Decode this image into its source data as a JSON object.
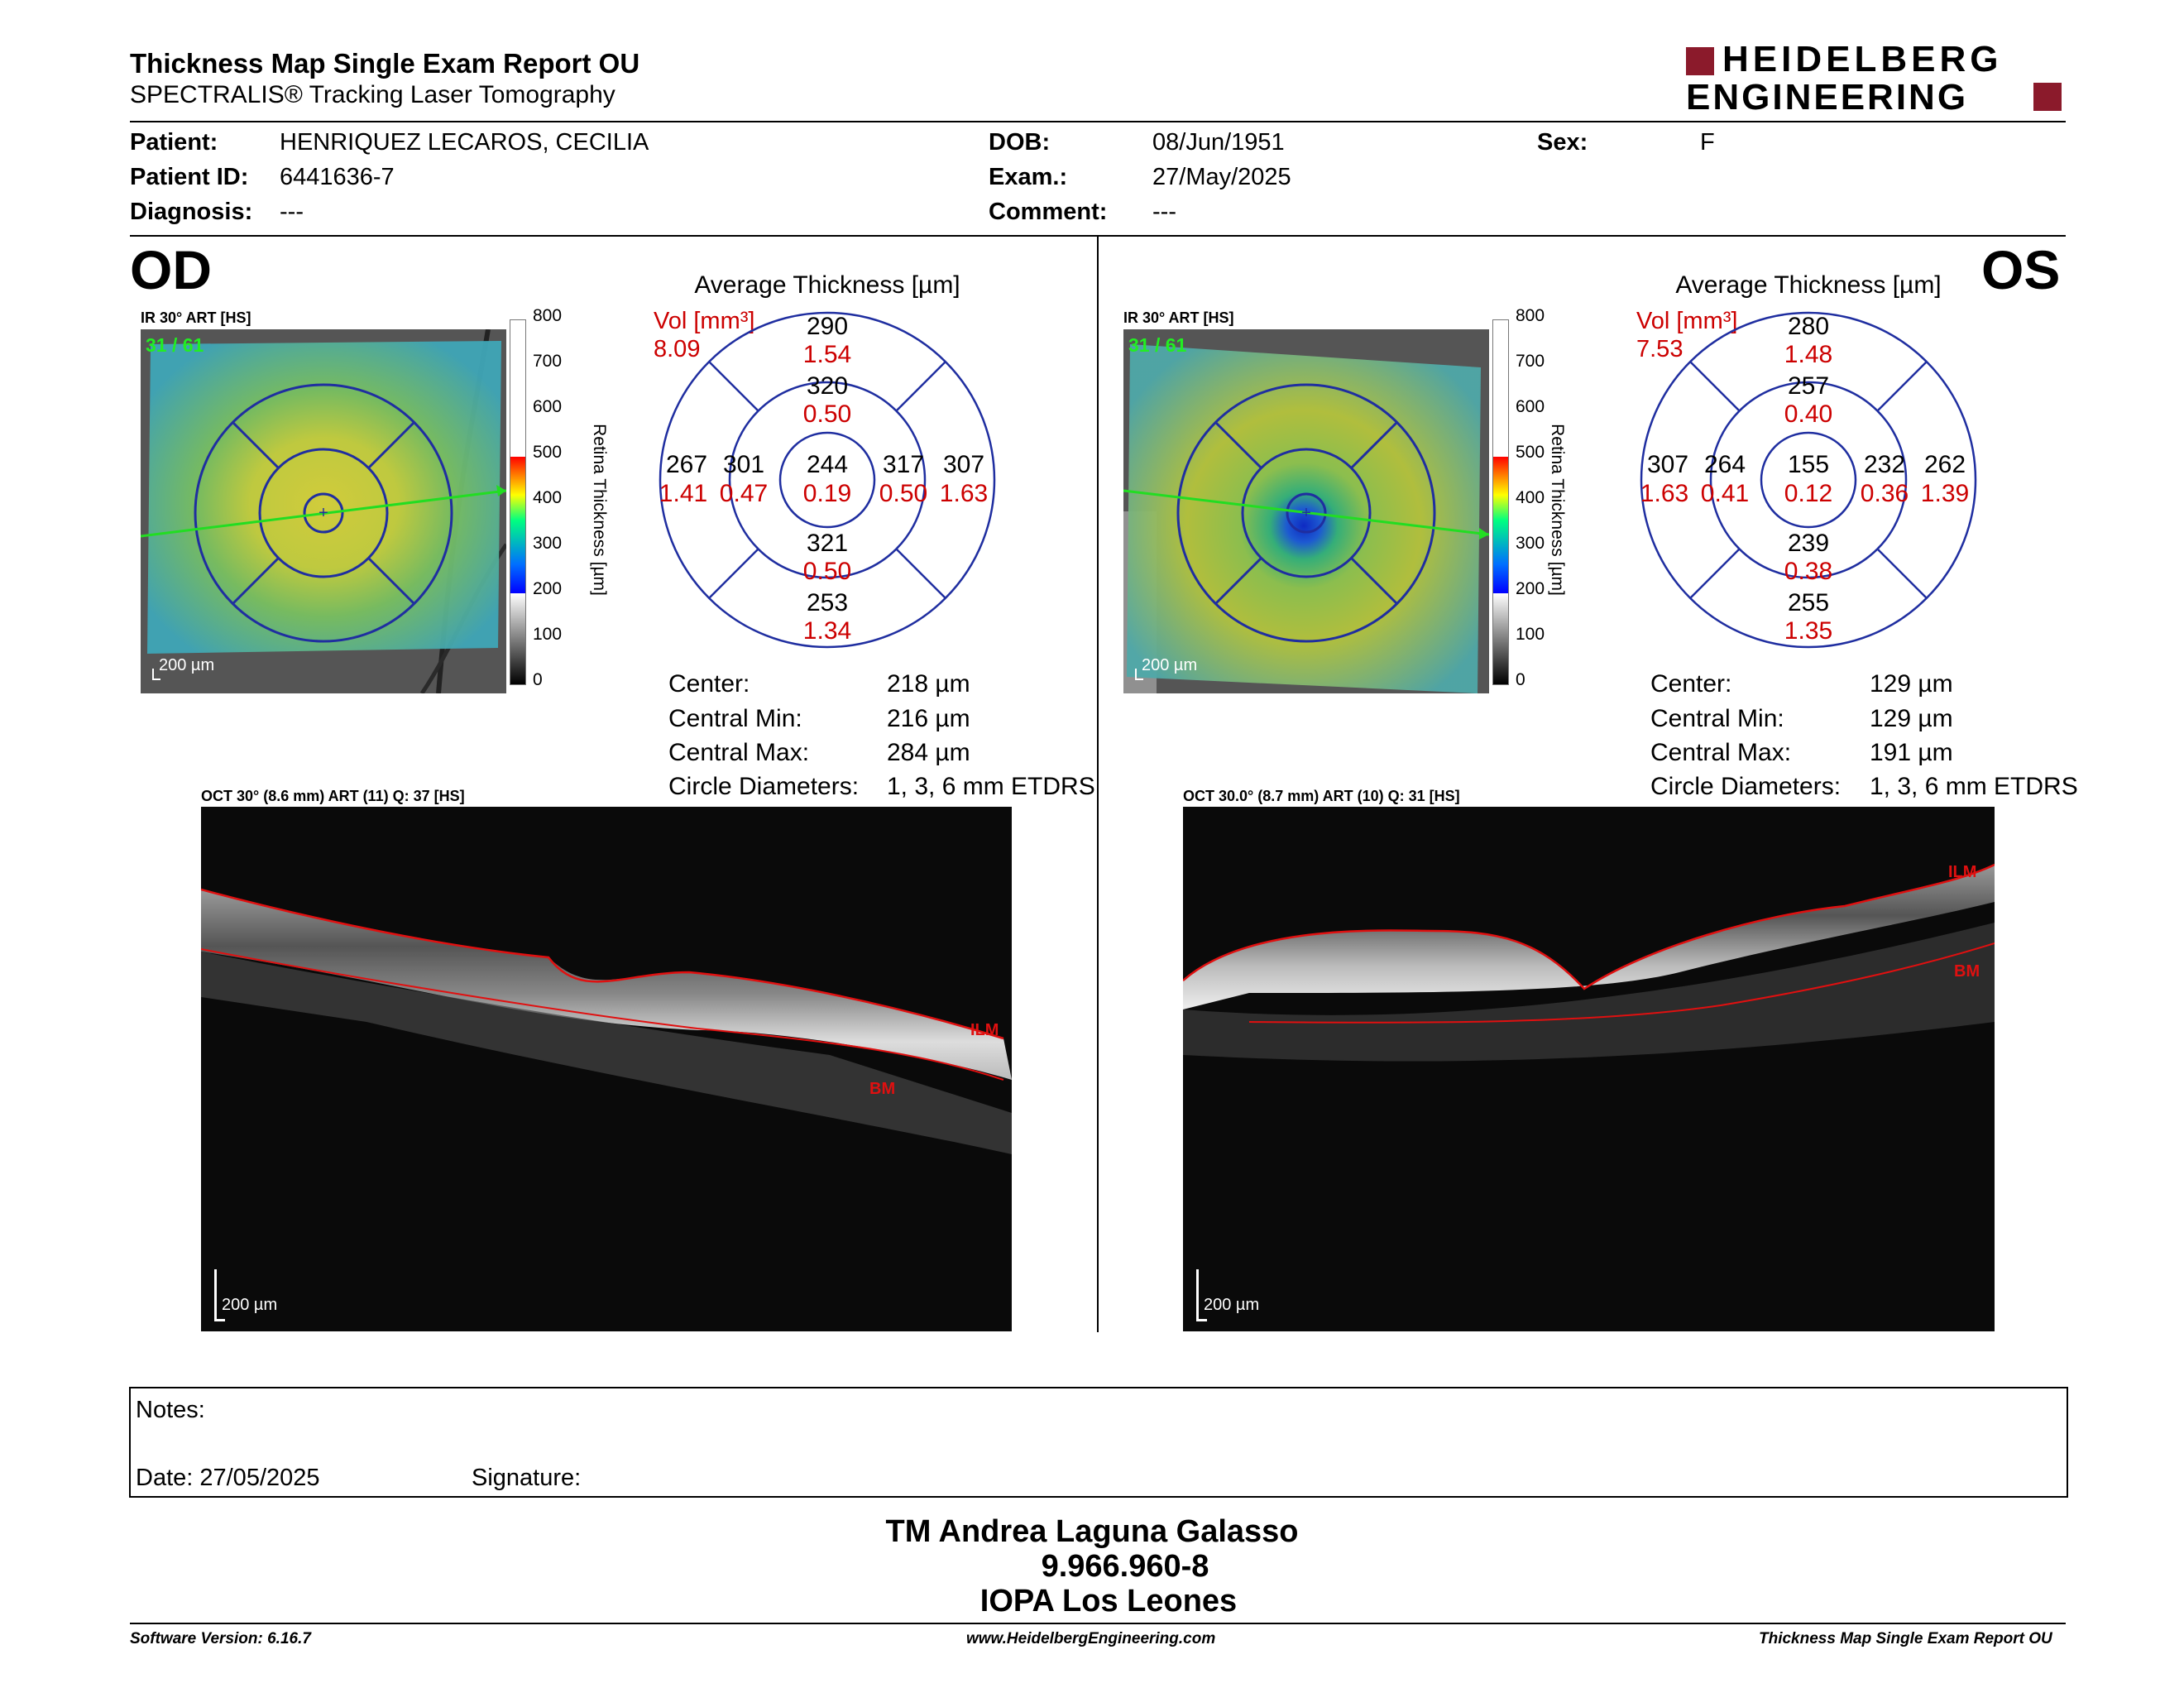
{
  "header": {
    "title": "Thickness Map Single Exam Report OU",
    "subtitle": "SPECTRALIS® Tracking Laser Tomography",
    "logo_line1": "HEIDELBERG",
    "logo_line2": "ENGINEERING",
    "brand_color": "#8b1a2b"
  },
  "patient": {
    "patient_label": "Patient:",
    "patient_value": "HENRIQUEZ LECAROS, CECILIA",
    "id_label": "Patient ID:",
    "id_value": "6441636-7",
    "diagnosis_label": "Diagnosis:",
    "diagnosis_value": "---",
    "dob_label": "DOB:",
    "dob_value": "08/Jun/1951",
    "exam_label": "Exam.:",
    "exam_value": "27/May/2025",
    "comment_label": "Comment:",
    "comment_value": "---",
    "sex_label": "Sex:",
    "sex_value": "F"
  },
  "od": {
    "eye": "OD",
    "ir_caption": "IR 30° ART [HS]",
    "frames": "31 / 61",
    "scale_bar": "200 µm",
    "colorbar_ticks": [
      "800",
      "700",
      "600",
      "500",
      "400",
      "300",
      "200",
      "100",
      "0"
    ],
    "colorbar_label": "Retina Thickness [µm]",
    "avg_title": "Average Thickness [µm]",
    "vol_label": "Vol [mm³]",
    "vol_total": "8.09",
    "sectors": {
      "outer_top": {
        "t": "290",
        "v": "1.54"
      },
      "inner_top": {
        "t": "320",
        "v": "0.50"
      },
      "outer_left": {
        "t": "267",
        "v": "1.41"
      },
      "inner_left": {
        "t": "301",
        "v": "0.47"
      },
      "center": {
        "t": "244",
        "v": "0.19"
      },
      "inner_right": {
        "t": "317",
        "v": "0.50"
      },
      "outer_right": {
        "t": "307",
        "v": "1.63"
      },
      "inner_bottom": {
        "t": "321",
        "v": "0.50"
      },
      "outer_bottom": {
        "t": "253",
        "v": "1.34"
      }
    },
    "stats": [
      {
        "label": "Center:",
        "value": "218 µm"
      },
      {
        "label": "Central Min:",
        "value": "216 µm"
      },
      {
        "label": "Central Max:",
        "value": "284 µm"
      },
      {
        "label": "Circle Diameters:",
        "value": "1, 3, 6 mm ETDRS"
      }
    ],
    "oct_caption": "OCT 30° (8.6 mm) ART (11) Q: 37 [HS]",
    "ilm": "ILM",
    "bm": "BM"
  },
  "os": {
    "eye": "OS",
    "ir_caption": "IR 30° ART [HS]",
    "frames": "31 / 61",
    "scale_bar": "200 µm",
    "colorbar_ticks": [
      "800",
      "700",
      "600",
      "500",
      "400",
      "300",
      "200",
      "100",
      "0"
    ],
    "colorbar_label": "Retina Thickness [µm]",
    "avg_title": "Average Thickness [µm]",
    "vol_label": "Vol [mm³]",
    "vol_total": "7.53",
    "sectors": {
      "outer_top": {
        "t": "280",
        "v": "1.48"
      },
      "inner_top": {
        "t": "257",
        "v": "0.40"
      },
      "outer_left": {
        "t": "307",
        "v": "1.63"
      },
      "inner_left": {
        "t": "264",
        "v": "0.41"
      },
      "center": {
        "t": "155",
        "v": "0.12"
      },
      "inner_right": {
        "t": "232",
        "v": "0.36"
      },
      "outer_right": {
        "t": "262",
        "v": "1.39"
      },
      "inner_bottom": {
        "t": "239",
        "v": "0.38"
      },
      "outer_bottom": {
        "t": "255",
        "v": "1.35"
      }
    },
    "stats": [
      {
        "label": "Center:",
        "value": "129 µm"
      },
      {
        "label": "Central Min:",
        "value": "129 µm"
      },
      {
        "label": "Central Max:",
        "value": "191 µm"
      },
      {
        "label": "Circle Diameters:",
        "value": "1, 3, 6 mm ETDRS"
      }
    ],
    "oct_caption": "OCT 30.0° (8.7 mm) ART (10) Q: 31 [HS]",
    "ilm": "ILM",
    "bm": "BM"
  },
  "notes": {
    "notes_label": "Notes:",
    "date_label": "Date: 27/05/2025",
    "signature_label": "Signature:"
  },
  "signer": {
    "name": "TM Andrea Laguna Galasso",
    "id": "9.966.960-8",
    "org": "IOPA Los Leones"
  },
  "footer": {
    "software": "Software Version: 6.16.7",
    "website": "www.HeidelbergEngineering.com",
    "report": "Thickness Map Single Exam Report OU"
  },
  "colors": {
    "sector_value": "#cc0000",
    "grid_blue": "#1f2ea0",
    "scan_green": "#22dd22"
  }
}
